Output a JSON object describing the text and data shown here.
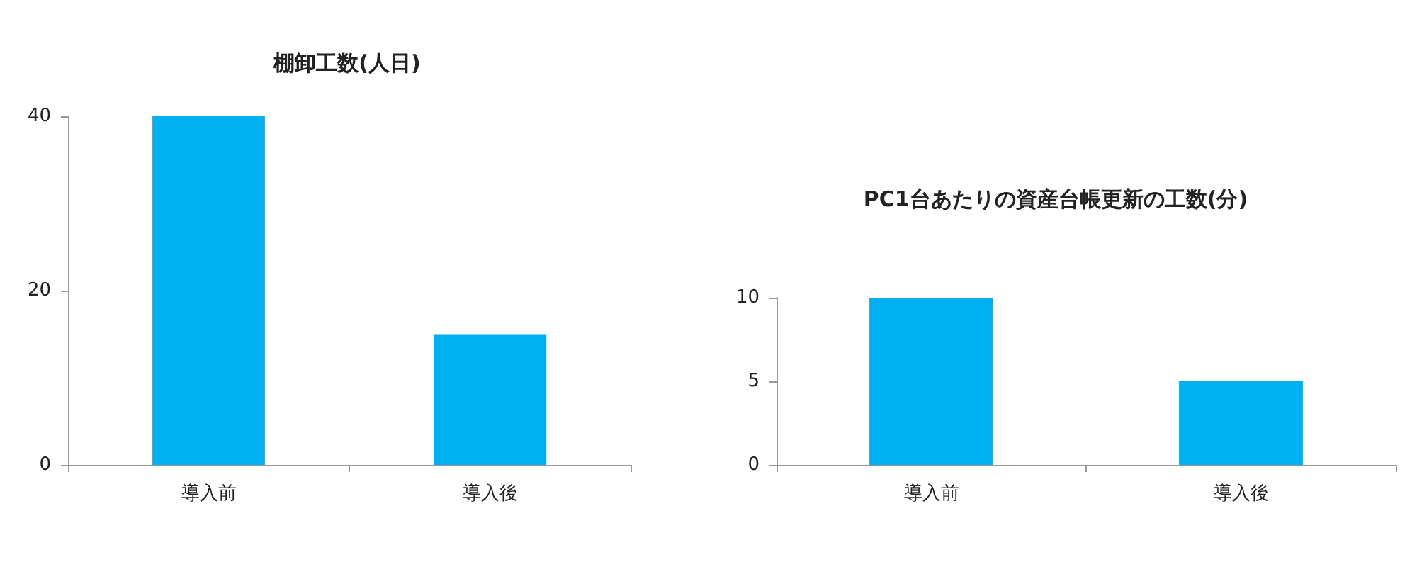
{
  "chart_data": [
    {
      "type": "bar",
      "title": "棚卸工数(人日)",
      "categories": [
        "導入前",
        "導入後"
      ],
      "values": [
        40,
        15
      ],
      "color": "#00b0f0",
      "ylim": [
        0,
        40
      ],
      "yticks": [
        0,
        20,
        40
      ],
      "grid": false
    },
    {
      "type": "bar",
      "title": "PC1台あたりの資産台帳更新の工数(分)",
      "categories": [
        "導入前",
        "導入後"
      ],
      "values": [
        10,
        5
      ],
      "color": "#00b0f0",
      "ylim": [
        0,
        10
      ],
      "yticks": [
        0,
        5,
        10
      ],
      "grid": false
    }
  ]
}
